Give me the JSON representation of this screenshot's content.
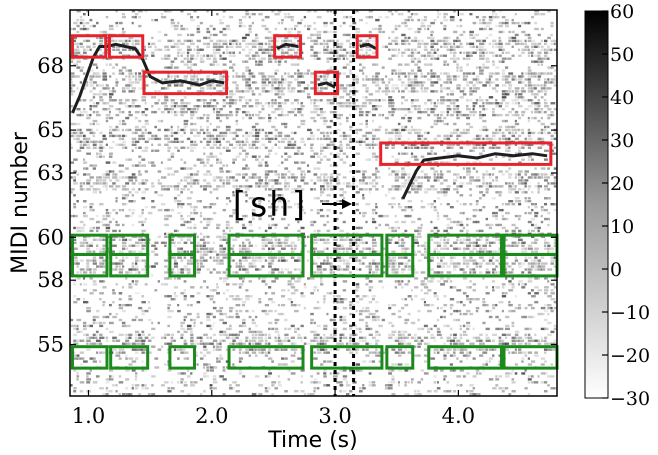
{
  "chart_data": {
    "type": "heatmap",
    "title": "",
    "xlabel": "Time (s)",
    "ylabel": "MIDI number",
    "xlim": [
      0.85,
      4.8
    ],
    "ylim": [
      52.6,
      70.6
    ],
    "xticks": [
      1.0,
      2.0,
      3.0,
      4.0
    ],
    "xtick_labels": [
      "1.0",
      "2.0",
      "3.0",
      "4.0"
    ],
    "yticks": [
      55,
      58,
      60,
      63,
      65,
      68
    ],
    "ytick_labels": [
      "55",
      "58",
      "60",
      "63",
      "65",
      "68"
    ],
    "colorbar": {
      "range": [
        -30,
        60
      ],
      "ticks": [
        -30,
        -20,
        -10,
        0,
        10,
        20,
        30,
        40,
        50,
        60
      ],
      "tick_labels": [
        "−30",
        "−20",
        "−10",
        "0",
        "10",
        "20",
        "30",
        "40",
        "50",
        "60"
      ],
      "colormap": "gray_r"
    },
    "annotation": {
      "text": "[sh]",
      "time": 3.01,
      "midi": 61.5
    },
    "vertical_dotted_lines": [
      3.0,
      3.15
    ],
    "red_boxes": [
      {
        "t0": 0.87,
        "t1": 1.14,
        "m0": 68.4,
        "m1": 69.4
      },
      {
        "t0": 1.17,
        "t1": 1.44,
        "m0": 68.4,
        "m1": 69.4
      },
      {
        "t0": 1.45,
        "t1": 2.12,
        "m0": 66.7,
        "m1": 67.7
      },
      {
        "t0": 2.51,
        "t1": 2.72,
        "m0": 68.4,
        "m1": 69.4
      },
      {
        "t0": 2.84,
        "t1": 3.02,
        "m0": 66.7,
        "m1": 67.7
      },
      {
        "t0": 3.18,
        "t1": 3.34,
        "m0": 68.4,
        "m1": 69.4
      },
      {
        "t0": 3.37,
        "t1": 4.75,
        "m0": 63.4,
        "m1": 64.4
      }
    ],
    "green_boxes": [
      {
        "t0": 0.87,
        "t1": 1.15,
        "m0": 59.2,
        "m1": 60.1
      },
      {
        "t0": 0.87,
        "t1": 1.15,
        "m0": 58.2,
        "m1": 59.2
      },
      {
        "t0": 0.87,
        "t1": 1.15,
        "m0": 53.9,
        "m1": 54.9
      },
      {
        "t0": 1.18,
        "t1": 1.48,
        "m0": 59.2,
        "m1": 60.1
      },
      {
        "t0": 1.18,
        "t1": 1.48,
        "m0": 58.2,
        "m1": 59.2
      },
      {
        "t0": 1.18,
        "t1": 1.48,
        "m0": 53.9,
        "m1": 54.9
      },
      {
        "t0": 1.66,
        "t1": 1.86,
        "m0": 59.2,
        "m1": 60.1
      },
      {
        "t0": 1.66,
        "t1": 1.86,
        "m0": 58.2,
        "m1": 59.2
      },
      {
        "t0": 1.66,
        "t1": 1.86,
        "m0": 53.9,
        "m1": 54.9
      },
      {
        "t0": 2.14,
        "t1": 2.74,
        "m0": 59.2,
        "m1": 60.1
      },
      {
        "t0": 2.14,
        "t1": 2.74,
        "m0": 58.2,
        "m1": 59.2
      },
      {
        "t0": 2.14,
        "t1": 2.74,
        "m0": 53.9,
        "m1": 54.9
      },
      {
        "t0": 2.81,
        "t1": 3.38,
        "m0": 59.2,
        "m1": 60.1
      },
      {
        "t0": 2.81,
        "t1": 3.38,
        "m0": 58.2,
        "m1": 59.2
      },
      {
        "t0": 2.81,
        "t1": 3.38,
        "m0": 53.9,
        "m1": 54.9
      },
      {
        "t0": 3.42,
        "t1": 3.63,
        "m0": 59.2,
        "m1": 60.1
      },
      {
        "t0": 3.42,
        "t1": 3.63,
        "m0": 58.2,
        "m1": 59.2
      },
      {
        "t0": 3.42,
        "t1": 3.63,
        "m0": 53.9,
        "m1": 54.9
      },
      {
        "t0": 3.76,
        "t1": 4.35,
        "m0": 59.2,
        "m1": 60.1
      },
      {
        "t0": 3.76,
        "t1": 4.35,
        "m0": 58.2,
        "m1": 59.2
      },
      {
        "t0": 3.76,
        "t1": 4.35,
        "m0": 53.9,
        "m1": 54.9
      },
      {
        "t0": 4.37,
        "t1": 4.8,
        "m0": 59.2,
        "m1": 60.1
      },
      {
        "t0": 4.37,
        "t1": 4.8,
        "m0": 58.2,
        "m1": 59.2
      },
      {
        "t0": 4.37,
        "t1": 4.8,
        "m0": 53.9,
        "m1": 54.9
      }
    ],
    "pitch_contours": [
      {
        "name": "",
        "points": [
          [
            0.87,
            65.8
          ],
          [
            0.93,
            66.6
          ],
          [
            0.99,
            67.6
          ],
          [
            1.04,
            68.4
          ],
          [
            1.09,
            68.9
          ],
          [
            1.15,
            68.9
          ],
          [
            1.22,
            69.0
          ],
          [
            1.3,
            68.9
          ],
          [
            1.38,
            68.8
          ],
          [
            1.44,
            68.3
          ],
          [
            1.5,
            67.5
          ],
          [
            1.6,
            67.2
          ],
          [
            1.75,
            67.3
          ],
          [
            1.9,
            67.1
          ],
          [
            2.0,
            67.3
          ],
          [
            2.1,
            67.2
          ]
        ]
      },
      {
        "name": "",
        "points": [
          [
            2.53,
            68.8
          ],
          [
            2.6,
            69.0
          ],
          [
            2.7,
            68.9
          ]
        ]
      },
      {
        "name": "",
        "points": [
          [
            2.86,
            67.1
          ],
          [
            2.93,
            67.2
          ],
          [
            3.0,
            67.0
          ]
        ]
      },
      {
        "name": "",
        "points": [
          [
            3.2,
            68.9
          ],
          [
            3.27,
            69.0
          ],
          [
            3.33,
            68.8
          ]
        ]
      },
      {
        "name": "",
        "points": [
          [
            3.55,
            61.8
          ],
          [
            3.6,
            62.4
          ],
          [
            3.66,
            63.1
          ],
          [
            3.72,
            63.6
          ],
          [
            3.85,
            63.7
          ],
          [
            4.0,
            63.8
          ],
          [
            4.15,
            63.7
          ],
          [
            4.3,
            63.9
          ],
          [
            4.45,
            63.8
          ],
          [
            4.6,
            63.9
          ],
          [
            4.72,
            63.8
          ]
        ]
      }
    ],
    "colors": {
      "red_box": "#e8222a",
      "green_box": "#1a8a1a",
      "contour": "#1e1e1e"
    }
  }
}
